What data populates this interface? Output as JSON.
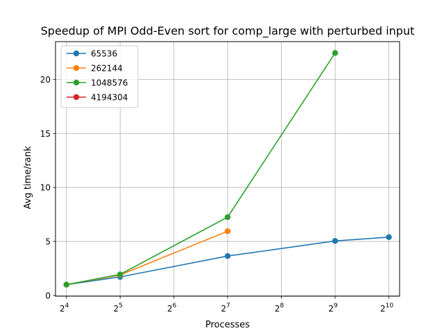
{
  "chart_data": {
    "type": "line",
    "title": "Speedup of MPI Odd-Even sort for comp_large with perturbed input",
    "xlabel": "Processes",
    "ylabel": "Avg time/rank",
    "x_scale": "log2",
    "x_ticks": [
      {
        "value": 16,
        "base": "2",
        "exp": "4"
      },
      {
        "value": 32,
        "base": "2",
        "exp": "5"
      },
      {
        "value": 64,
        "base": "2",
        "exp": "6"
      },
      {
        "value": 128,
        "base": "2",
        "exp": "7"
      },
      {
        "value": 256,
        "base": "2",
        "exp": "8"
      },
      {
        "value": 512,
        "base": "2",
        "exp": "9"
      },
      {
        "value": 1024,
        "base": "2",
        "exp": "10"
      }
    ],
    "y_ticks": [
      0,
      5,
      10,
      15,
      20
    ],
    "xlim": [
      13.9,
      1176
    ],
    "ylim": [
      -0.07,
      23.5
    ],
    "grid": true,
    "legend_position": "top-left",
    "series": [
      {
        "name": "65536",
        "color": "#1f77b4",
        "x": [
          16,
          32,
          128,
          512,
          1024
        ],
        "y": [
          1.0,
          1.72,
          3.65,
          5.05,
          5.4
        ]
      },
      {
        "name": "262144",
        "color": "#ff7f0e",
        "x": [
          16,
          32,
          128
        ],
        "y": [
          1.0,
          1.9,
          5.95
        ]
      },
      {
        "name": "1048576",
        "color": "#2ca02c",
        "x": [
          16,
          32,
          128,
          512
        ],
        "y": [
          1.0,
          1.95,
          7.25,
          22.45
        ]
      },
      {
        "name": "4194304",
        "color": "#d62728",
        "x": [],
        "y": []
      }
    ]
  }
}
